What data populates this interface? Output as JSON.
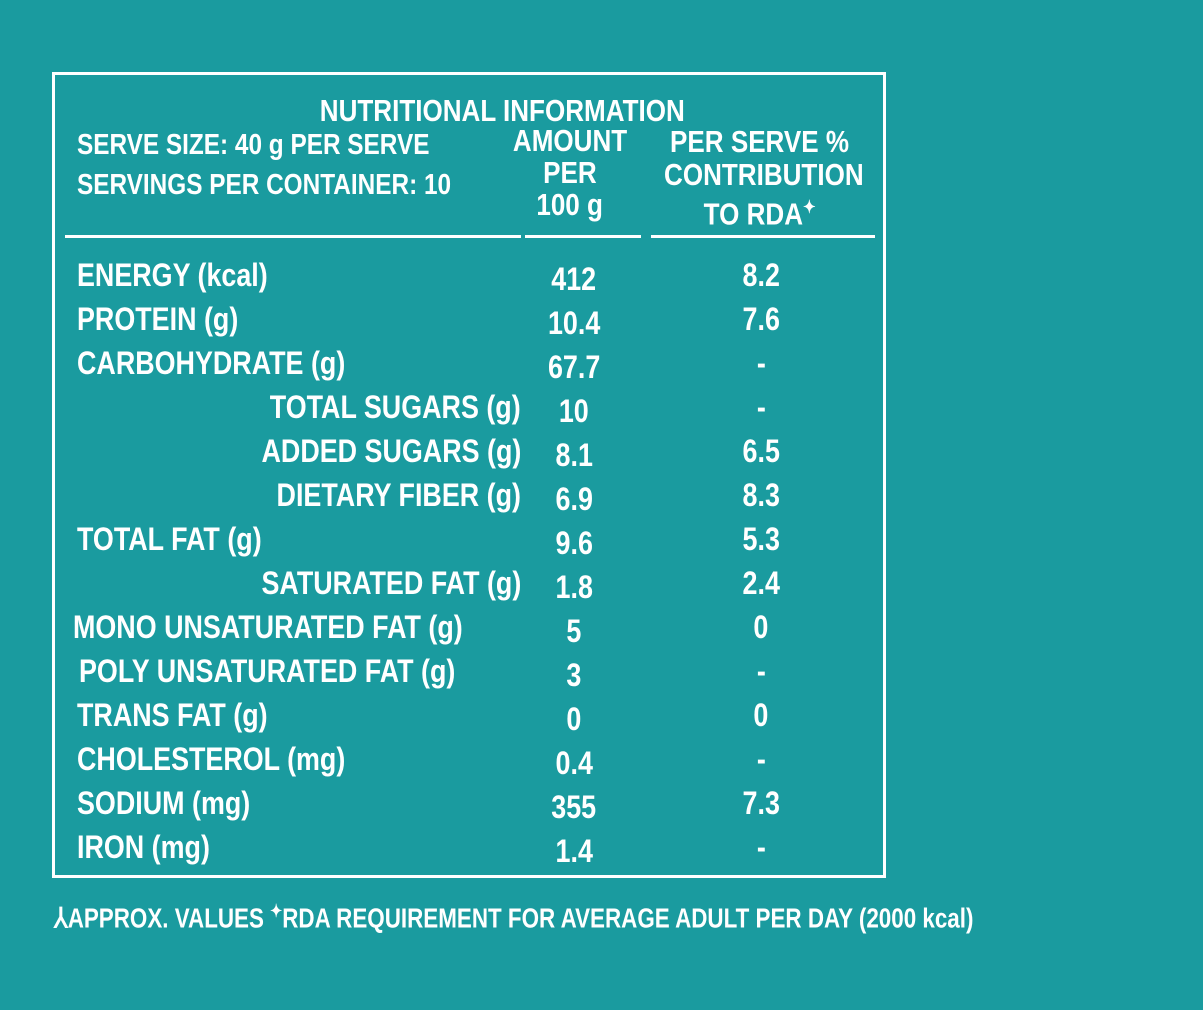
{
  "colors": {
    "background": "#1a9b9f",
    "text": "#ffffff"
  },
  "header": {
    "title": "NUTRITIONAL INFORMATION",
    "serve_size": "SERVE SIZE: 40 g PER SERVE",
    "servings": "SERVINGS PER CONTAINER: 10",
    "amount_line1": "AMOUNT",
    "amount_line2": "PER",
    "amount_line3": "100 g",
    "rda_line1": "PER SERVE %",
    "rda_line2": "CONTRIBUTION",
    "rda_line3": "TO RDA",
    "rda_mark": "✦"
  },
  "rows": [
    {
      "label": "ENERGY (kcal)",
      "amount": "412",
      "rda": "8.2"
    },
    {
      "label": "PROTEIN (g)",
      "amount": "10.4",
      "rda": "7.6"
    },
    {
      "label": "CARBOHYDRATE (g)",
      "amount": "67.7",
      "rda": "-"
    },
    {
      "label": "TOTAL SUGARS (g)",
      "amount": "10",
      "rda": "-"
    },
    {
      "label": "ADDED SUGARS (g)",
      "amount": "8.1",
      "rda": "6.5"
    },
    {
      "label": "DIETARY FIBER (g)",
      "amount": "6.9",
      "rda": "8.3"
    },
    {
      "label": "TOTAL FAT  (g)",
      "amount": "9.6",
      "rda": "5.3"
    },
    {
      "label": "SATURATED FAT (g)",
      "amount": "1.8",
      "rda": "2.4"
    },
    {
      "label": "MONO UNSATURATED FAT (g)",
      "amount": "5",
      "rda": "0"
    },
    {
      "label": "POLY UNSATURATED FAT  (g)",
      "amount": "3",
      "rda": "-"
    },
    {
      "label": "TRANS FAT  (g)",
      "amount": "0",
      "rda": "0"
    },
    {
      "label": "CHOLESTEROL  (mg)",
      "amount": "0.4",
      "rda": "-"
    },
    {
      "label": "SODIUM  (mg)",
      "amount": "355",
      "rda": "7.3"
    },
    {
      "label": "IRON  (mg)",
      "amount": "1.4",
      "rda": "-"
    }
  ],
  "footer": {
    "approx_mark": "⅄",
    "approx_text": "APPROX. VALUES",
    "rda_mark": "✦",
    "rda_text": "RDA REQUIREMENT FOR AVERAGE ADULT PER DAY (2000 kcal)"
  }
}
